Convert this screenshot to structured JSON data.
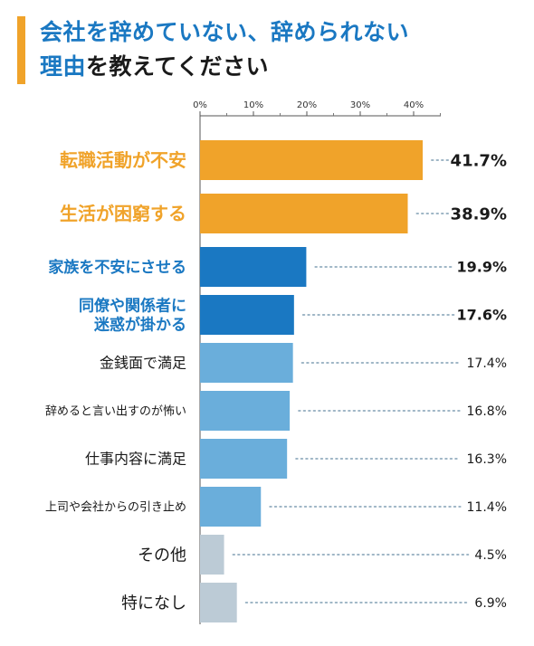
{
  "title": {
    "line1": "会社を辞めていない、辞められない",
    "line2_highlight": "理由",
    "line2_rest": "を教えてください"
  },
  "colors": {
    "orange": "#f0a32a",
    "blue_dark": "#1a78c2",
    "blue_light": "#6aaedb",
    "gray": "#bccbd6",
    "accent_bar": "#f0a32a"
  },
  "chart_data": {
    "type": "bar",
    "orientation": "horizontal",
    "xlim": [
      0,
      45
    ],
    "x_ticks": [
      "0%",
      "10%",
      "20%",
      "30%",
      "40%"
    ],
    "categories": [
      {
        "label": "転職活動が不安",
        "value": 41.7,
        "value_label": "41.7%",
        "color_key": "orange",
        "emphasis": "high"
      },
      {
        "label": "生活が困窮する",
        "value": 38.9,
        "value_label": "38.9%",
        "color_key": "orange",
        "emphasis": "high"
      },
      {
        "label": "家族を不安にさせる",
        "value": 19.9,
        "value_label": "19.9%",
        "color_key": "blue_dark",
        "emphasis": "mid"
      },
      {
        "label": "同僚や関係者に\n迷惑が掛かる",
        "value": 17.6,
        "value_label": "17.6%",
        "color_key": "blue_dark",
        "emphasis": "mid"
      },
      {
        "label": "金銭面で満足",
        "value": 17.4,
        "value_label": "17.4%",
        "color_key": "blue_light",
        "emphasis": "low"
      },
      {
        "label": "辞めると言い出すのが怖い",
        "value": 16.8,
        "value_label": "16.8%",
        "color_key": "blue_light",
        "emphasis": "low"
      },
      {
        "label": "仕事内容に満足",
        "value": 16.3,
        "value_label": "16.3%",
        "color_key": "blue_light",
        "emphasis": "low"
      },
      {
        "label": "上司や会社からの引き止め",
        "value": 11.4,
        "value_label": "11.4%",
        "color_key": "blue_light",
        "emphasis": "low"
      },
      {
        "label": "その他",
        "value": 4.5,
        "value_label": "4.5%",
        "color_key": "gray",
        "emphasis": "low"
      },
      {
        "label": "特になし",
        "value": 6.9,
        "value_label": "6.9%",
        "color_key": "gray",
        "emphasis": "low"
      }
    ]
  }
}
